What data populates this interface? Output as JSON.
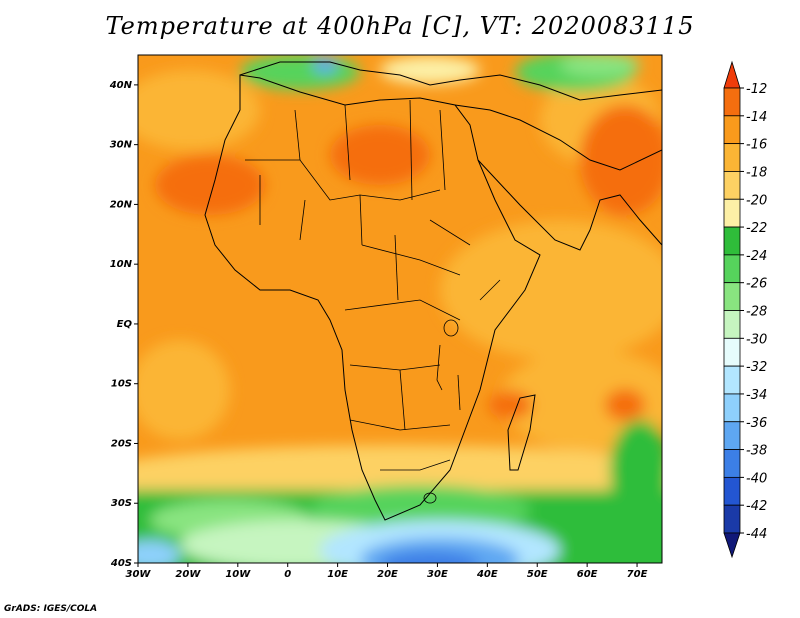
{
  "title": "Temperature at 400hPa [C], VT: 2020083115",
  "credit": "GrADS: IGES/COLA",
  "map": {
    "lat_ticks": [
      "40N",
      "30N",
      "20N",
      "10N",
      "EQ",
      "10S",
      "20S",
      "30S",
      "40S"
    ],
    "lon_ticks": [
      "30W",
      "20W",
      "10W",
      "0",
      "10E",
      "20E",
      "30E",
      "40E",
      "50E",
      "60E",
      "70E"
    ],
    "lat_range": [
      -40,
      45
    ],
    "lon_range": [
      -30,
      75
    ]
  },
  "colorbar": {
    "labels": [
      "-12",
      "-14",
      "-16",
      "-18",
      "-20",
      "-22",
      "-24",
      "-26",
      "-28",
      "-30",
      "-32",
      "-34",
      "-36",
      "-38",
      "-40",
      "-42",
      "-44"
    ],
    "colors": [
      "#f03c0a",
      "#f56e0f",
      "#f99a1c",
      "#fbb535",
      "#fdd163",
      "#fdf0a6",
      "#2fbd3a",
      "#56d35c",
      "#89e480",
      "#c6f5c0",
      "#e6fcfc",
      "#b2e6ff",
      "#8ed0fc",
      "#5ea7f2",
      "#3c7fe6",
      "#2356d2",
      "#1a3aa8",
      "#101878"
    ]
  }
}
